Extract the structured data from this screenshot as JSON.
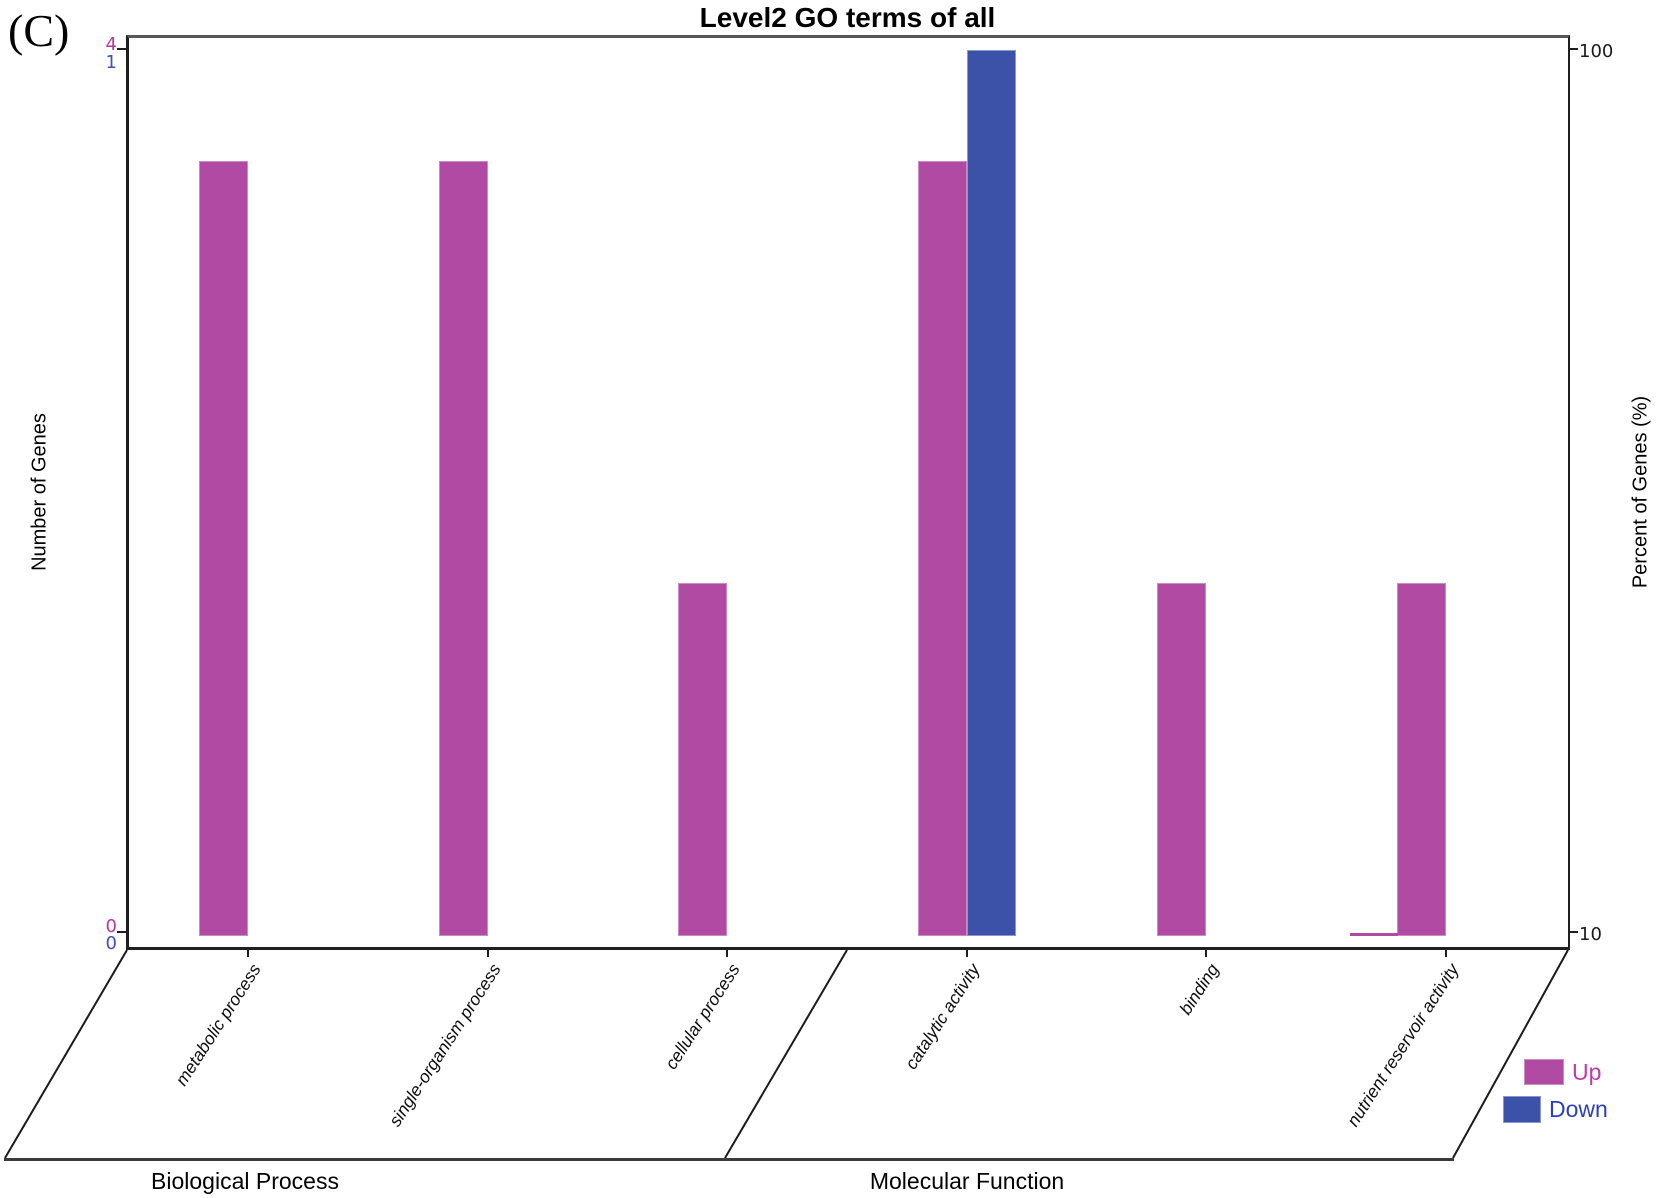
{
  "figure": {
    "panel_label": "(C)",
    "title": "Level2 GO terms of all",
    "left_axis": {
      "label": "Number of Genes",
      "up_top_tick": "4",
      "down_top_tick": "1",
      "up_bottom_tick": "0",
      "down_bottom_tick": "0"
    },
    "right_axis": {
      "label": "Percent of Genes (%)",
      "top_tick": "100",
      "bottom_tick": "10"
    },
    "legend": {
      "up_label": "Up",
      "down_label": "Down",
      "up_color": "#b04aa2",
      "down_color": "#3c52a9"
    }
  },
  "chart_data": {
    "type": "bar",
    "title": "Level2 GO terms of all",
    "categories": [
      "metabolic process",
      "single-organism process",
      "cellular process",
      "catalytic activity",
      "binding",
      "nutrient reservoir activity"
    ],
    "category_groups": [
      {
        "label": "Biological Process",
        "category_indexes": [
          0,
          1,
          2
        ]
      },
      {
        "label": "Molecular Function",
        "category_indexes": [
          3,
          4,
          5
        ]
      }
    ],
    "series": [
      {
        "name": "Up",
        "color": "#b04aa2",
        "total_genes": 4,
        "gene_counts": [
          3,
          3,
          1,
          3,
          1,
          1
        ],
        "percent": [
          75,
          75,
          25,
          75,
          25,
          25
        ]
      },
      {
        "name": "Down",
        "color": "#3c52a9",
        "total_genes": 1,
        "gene_counts": [
          0,
          0,
          0,
          1,
          0,
          0
        ],
        "percent": [
          0,
          0,
          0,
          100,
          0,
          0
        ]
      }
    ],
    "left_axis": {
      "label": "Number of Genes",
      "up_range": [
        0,
        4
      ],
      "down_range": [
        0,
        1
      ]
    },
    "right_axis": {
      "label": "Percent of Genes (%)",
      "range": [
        10,
        100
      ],
      "scale": "log",
      "ticks": [
        10,
        100
      ]
    },
    "legend_position": "bottom-right",
    "grid": false
  }
}
